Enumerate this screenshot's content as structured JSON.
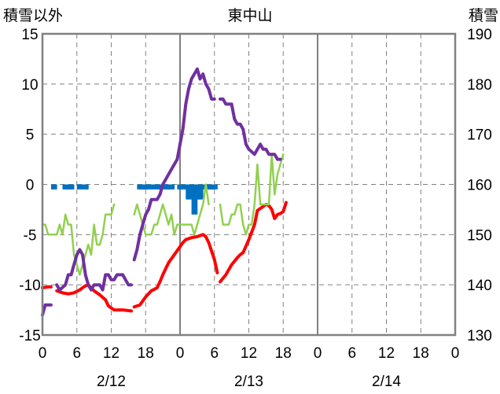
{
  "chart_data": {
    "type": "line",
    "title": "東中山",
    "ylabel_left": "積雪以外",
    "ylabel_right": "積雪",
    "ylim_left": [
      -15,
      15
    ],
    "ylim_right": [
      130,
      190
    ],
    "yticks_left": [
      "15",
      "10",
      "5",
      "0",
      "-5",
      "-10",
      "-15"
    ],
    "yticks_right": [
      "190",
      "180",
      "170",
      "160",
      "150",
      "140",
      "130"
    ],
    "x_range_hours": [
      0,
      72
    ],
    "xticks": [
      "0",
      "6",
      "12",
      "18",
      "0",
      "6",
      "12",
      "18",
      "0",
      "6",
      "12",
      "18",
      "0"
    ],
    "dates": [
      "2/12",
      "2/13",
      "2/14"
    ],
    "grid": true,
    "colors": {
      "snow_depth": "#7030a0",
      "temperature": "#ff0000",
      "precipitation": "#0070c0",
      "wind": "#92d050"
    },
    "series": [
      {
        "key": "snow_depth",
        "axis": "right",
        "segments": [
          [
            [
              0,
              134
            ],
            [
              0.5,
              136
            ],
            [
              1,
              136
            ],
            [
              1.5,
              136
            ]
          ],
          [
            [
              2.5,
              140
            ],
            [
              3,
              139
            ],
            [
              4,
              140
            ],
            [
              4.5,
              142
            ],
            [
              5,
              142
            ],
            [
              5.5,
              144
            ],
            [
              6,
              146
            ],
            [
              6.5,
              147
            ],
            [
              7,
              146
            ],
            [
              7.5,
              142
            ],
            [
              8,
              140
            ],
            [
              8.5,
              139
            ],
            [
              9,
              140
            ],
            [
              10,
              140
            ],
            [
              10.5,
              139
            ],
            [
              11,
              142
            ],
            [
              11.5,
              142
            ],
            [
              12,
              141
            ],
            [
              12.5,
              141
            ],
            [
              13,
              142
            ],
            [
              14,
              142
            ],
            [
              14.5,
              141
            ],
            [
              15,
              140
            ],
            [
              15.5,
              140
            ]
          ],
          [
            [
              16,
              145
            ],
            [
              16.5,
              147
            ],
            [
              17,
              150
            ],
            [
              17.5,
              152
            ],
            [
              18,
              154
            ],
            [
              18.5,
              155
            ],
            [
              19,
              157
            ],
            [
              19.5,
              157
            ],
            [
              20,
              157
            ],
            [
              20.5,
              158
            ],
            [
              21,
              160
            ],
            [
              21.5,
              161
            ],
            [
              22,
              162
            ],
            [
              22.5,
              163
            ],
            [
              23,
              164
            ],
            [
              23.5,
              165
            ],
            [
              24,
              168
            ],
            [
              24.5,
              171
            ],
            [
              25,
              176
            ],
            [
              25.5,
              179
            ],
            [
              26,
              181
            ],
            [
              26.5,
              182
            ],
            [
              27,
              183
            ],
            [
              27.5,
              181
            ],
            [
              28,
              182
            ],
            [
              28.5,
              180
            ],
            [
              29,
              179
            ],
            [
              29.5,
              177
            ],
            [
              30,
              177
            ]
          ],
          [
            [
              31,
              177
            ],
            [
              31.5,
              177
            ],
            [
              32,
              176
            ],
            [
              32.5,
              176
            ],
            [
              33,
              176
            ],
            [
              33.5,
              173
            ],
            [
              34,
              172
            ],
            [
              34.5,
              172
            ],
            [
              35,
              171
            ],
            [
              35.5,
              168
            ],
            [
              36,
              167
            ],
            [
              37,
              166
            ],
            [
              37.5,
              167
            ],
            [
              38,
              168
            ],
            [
              38.5,
              167
            ],
            [
              39,
              167
            ],
            [
              39.5,
              166
            ],
            [
              40,
              166
            ],
            [
              40.5,
              166
            ],
            [
              41,
              165
            ],
            [
              41.5,
              165
            ]
          ]
        ]
      },
      {
        "key": "temperature",
        "axis": "left",
        "segments": [
          [
            [
              0,
              -10.3
            ],
            [
              1,
              -10.2
            ],
            [
              1.5,
              -10.2
            ]
          ],
          [
            [
              2.5,
              -10.6
            ],
            [
              3.5,
              -10.8
            ],
            [
              4.5,
              -10.9
            ],
            [
              5.5,
              -10.8
            ],
            [
              6.5,
              -10.5
            ],
            [
              7.5,
              -10.1
            ],
            [
              8,
              -10.0
            ],
            [
              8.5,
              -10.3
            ],
            [
              9,
              -10.6
            ],
            [
              10,
              -11.0
            ],
            [
              11,
              -11.5
            ],
            [
              11.5,
              -12.1
            ],
            [
              12.5,
              -12.5
            ],
            [
              14,
              -12.5
            ],
            [
              15.5,
              -12.6
            ]
          ],
          [
            [
              16,
              -12.2
            ],
            [
              17,
              -12.0
            ],
            [
              18,
              -11.2
            ],
            [
              19,
              -10.6
            ],
            [
              20,
              -10.3
            ],
            [
              20.5,
              -9.7
            ],
            [
              21,
              -9.0
            ],
            [
              22,
              -7.8
            ],
            [
              23,
              -7.0
            ],
            [
              24,
              -6.2
            ],
            [
              24.5,
              -5.8
            ],
            [
              25,
              -5.5
            ],
            [
              26,
              -5.3
            ],
            [
              27,
              -5.2
            ],
            [
              28,
              -5.0
            ],
            [
              28.5,
              -5.2
            ],
            [
              29,
              -5.8
            ],
            [
              30,
              -7.5
            ],
            [
              30.5,
              -8.8
            ]
          ],
          [
            [
              31,
              -9.7
            ],
            [
              32,
              -9.0
            ],
            [
              33,
              -8.0
            ],
            [
              34,
              -7.3
            ],
            [
              34.5,
              -7.0
            ],
            [
              35,
              -6.8
            ],
            [
              36,
              -5.5
            ],
            [
              37,
              -4.0
            ],
            [
              37.5,
              -2.6
            ],
            [
              38,
              -2.4
            ],
            [
              39,
              -2.0
            ],
            [
              39.5,
              -2.1
            ],
            [
              40,
              -2.5
            ],
            [
              40.5,
              -3.4
            ],
            [
              41,
              -3.0
            ],
            [
              41.5,
              -2.9
            ],
            [
              42,
              -2.7
            ],
            [
              42.5,
              -1.8
            ]
          ]
        ]
      },
      {
        "key": "wind",
        "axis": "left",
        "segments": [
          [
            [
              0,
              -4.0
            ],
            [
              0.5,
              -4.0
            ],
            [
              1,
              -5.0
            ],
            [
              1.5,
              -5.0
            ],
            [
              2,
              -5.0
            ],
            [
              2.5,
              -5.0
            ],
            [
              3,
              -4.0
            ],
            [
              3.5,
              -5.0
            ],
            [
              4,
              -3.0
            ],
            [
              4.5,
              -4.0
            ],
            [
              5,
              -4.0
            ],
            [
              5.5,
              -7.0
            ],
            [
              6,
              -8.0
            ],
            [
              6.5,
              -9.0
            ],
            [
              7,
              -8.0
            ],
            [
              7.5,
              -7.0
            ],
            [
              8,
              -6.0
            ],
            [
              8.5,
              -7.0
            ],
            [
              9,
              -4.0
            ],
            [
              9.5,
              -6.0
            ],
            [
              10,
              -6.0
            ],
            [
              10.5,
              -5.0
            ],
            [
              11,
              -3.0
            ],
            [
              11.5,
              -3.0
            ],
            [
              12,
              -3.0
            ],
            [
              12.5,
              -2.0
            ]
          ],
          [
            [
              16,
              -3.0
            ],
            [
              16.5,
              -2.0
            ],
            [
              17,
              -3.0
            ],
            [
              17.5,
              -4.0
            ],
            [
              18,
              -5.0
            ],
            [
              18.5,
              -5.0
            ],
            [
              19,
              -5.0
            ],
            [
              19.5,
              -4.0
            ],
            [
              20,
              -4.0
            ],
            [
              20.5,
              -3.0
            ],
            [
              21,
              -2.0
            ],
            [
              21.5,
              -3.0
            ],
            [
              22,
              -4.0
            ],
            [
              22.5,
              -3.0
            ],
            [
              23,
              -5.0
            ],
            [
              23.5,
              -4.0
            ],
            [
              24,
              -4.0
            ],
            [
              24.5,
              -4.0
            ],
            [
              25,
              -4.0
            ],
            [
              25.5,
              -4.0
            ],
            [
              26,
              -4.0
            ],
            [
              26.5,
              -5.0
            ],
            [
              27,
              -4.0
            ],
            [
              27.5,
              -3.0
            ],
            [
              28,
              -2.0
            ],
            [
              28.5,
              0.0
            ],
            [
              29,
              -2.0
            ]
          ],
          [
            [
              31,
              -2.0
            ],
            [
              31.5,
              -4.0
            ],
            [
              32,
              -4.0
            ],
            [
              32.5,
              -4.0
            ],
            [
              33,
              -3.0
            ],
            [
              33.5,
              -3.0
            ],
            [
              34,
              -2.0
            ],
            [
              34.5,
              -2.0
            ],
            [
              35,
              -4.0
            ],
            [
              35.5,
              -5.0
            ],
            [
              36,
              -4.0
            ],
            [
              36.5,
              -4.0
            ],
            [
              37,
              -2.0
            ],
            [
              37.5,
              2.0
            ],
            [
              38,
              -2.0
            ],
            [
              38.5,
              -2.0
            ],
            [
              39,
              -2.0
            ],
            [
              39.5,
              -2.0
            ],
            [
              40,
              3.0
            ],
            [
              40.5,
              -1.0
            ],
            [
              41,
              1.0
            ],
            [
              41.5,
              2.0
            ],
            [
              42,
              3.0
            ]
          ]
        ]
      },
      {
        "key": "precipitation",
        "axis": "left",
        "type": "bar",
        "bar_width_hours": 1,
        "bars": [
          [
            1.5,
            -0.5
          ],
          [
            3.5,
            -0.5
          ],
          [
            4,
            -0.5
          ],
          [
            4.5,
            -0.5
          ],
          [
            6,
            -0.5
          ],
          [
            7,
            -0.5
          ],
          [
            16.5,
            -0.5
          ],
          [
            17,
            -0.5
          ],
          [
            17.5,
            -0.5
          ],
          [
            18,
            -0.5
          ],
          [
            19,
            -0.5
          ],
          [
            20,
            -0.5
          ],
          [
            21,
            -0.5
          ],
          [
            21.5,
            -0.5
          ],
          [
            22,
            -0.5
          ],
          [
            23.5,
            -0.5
          ],
          [
            24,
            -0.5
          ],
          [
            25,
            -1.5
          ],
          [
            25.5,
            -1.0
          ],
          [
            26,
            -3.0
          ],
          [
            26.5,
            -1.5
          ],
          [
            27,
            -1.5
          ],
          [
            28,
            -0.5
          ],
          [
            28.5,
            -0.5
          ],
          [
            29,
            -0.5
          ],
          [
            29.5,
            -0.5
          ]
        ]
      }
    ]
  }
}
